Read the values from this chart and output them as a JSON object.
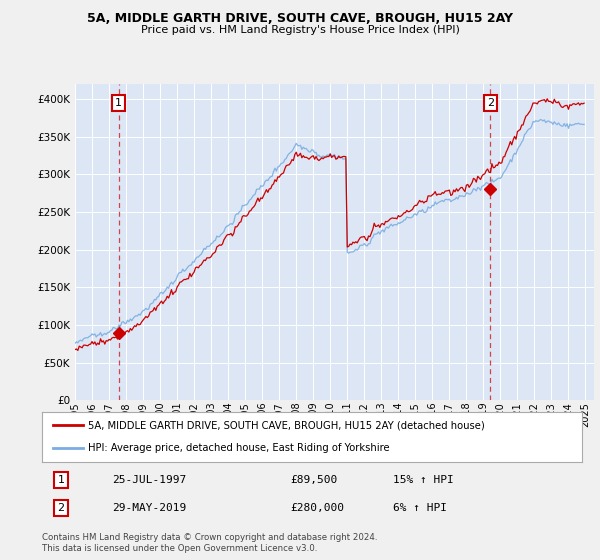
{
  "title": "5A, MIDDLE GARTH DRIVE, SOUTH CAVE, BROUGH, HU15 2AY",
  "subtitle": "Price paid vs. HM Land Registry's House Price Index (HPI)",
  "background_color": "#dce6f5",
  "plot_bg_color": "#dce6f5",
  "fig_bg_color": "#f0f0f0",
  "ylim": [
    0,
    420000
  ],
  "yticks": [
    0,
    50000,
    100000,
    150000,
    200000,
    250000,
    300000,
    350000,
    400000
  ],
  "ytick_labels": [
    "£0",
    "£50K",
    "£100K",
    "£150K",
    "£200K",
    "£250K",
    "£300K",
    "£350K",
    "£400K"
  ],
  "sale1_date": 1997.57,
  "sale1_price": 89500,
  "sale1_label": "1",
  "sale2_date": 2019.41,
  "sale2_price": 280000,
  "sale2_label": "2",
  "hpi_line_color": "#7aade0",
  "price_line_color": "#cc0000",
  "dashed_line_color": "#cc0000",
  "marker_color": "#cc0000",
  "grid_color": "#ffffff",
  "legend_label_price": "5A, MIDDLE GARTH DRIVE, SOUTH CAVE, BROUGH, HU15 2AY (detached house)",
  "legend_label_hpi": "HPI: Average price, detached house, East Riding of Yorkshire",
  "table_row1": [
    "1",
    "25-JUL-1997",
    "£89,500",
    "15% ↑ HPI"
  ],
  "table_row2": [
    "2",
    "29-MAY-2019",
    "£280,000",
    "6% ↑ HPI"
  ],
  "footer": "Contains HM Land Registry data © Crown copyright and database right 2024.\nThis data is licensed under the Open Government Licence v3.0.",
  "xlim_start": 1995.0,
  "xlim_end": 2025.5,
  "xticks": [
    1995,
    1996,
    1997,
    1998,
    1999,
    2000,
    2001,
    2002,
    2003,
    2004,
    2005,
    2006,
    2007,
    2008,
    2009,
    2010,
    2011,
    2012,
    2013,
    2014,
    2015,
    2016,
    2017,
    2018,
    2019,
    2020,
    2021,
    2022,
    2023,
    2024,
    2025
  ]
}
